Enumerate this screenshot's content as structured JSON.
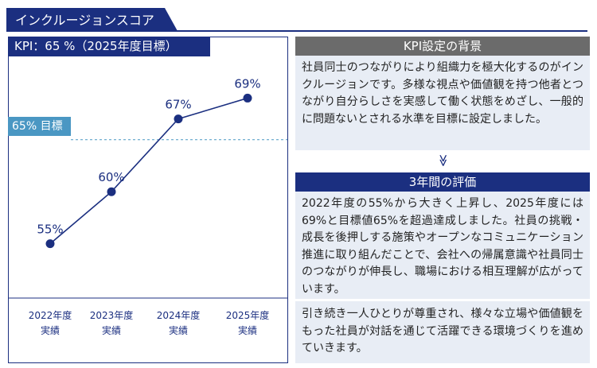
{
  "header": {
    "title": "インクルージョンスコア"
  },
  "kpi_label": "KPI：65 %（2025年度目標）",
  "target_label": "65% 目標",
  "chart_data": {
    "type": "line",
    "categories": [
      "2022年度\n実績",
      "2023年度\n実績",
      "2024年度\n実績",
      "2025年度\n実績"
    ],
    "values": [
      55,
      60,
      67,
      69
    ],
    "value_labels": [
      "55%",
      "60%",
      "67%",
      "69%"
    ],
    "target": 65,
    "ylim": [
      51,
      74
    ],
    "colors": {
      "line": "#1b2f80",
      "target_line": "#4a97c3"
    }
  },
  "background_section": {
    "title": "KPI設定の背景",
    "text": "社員同士のつながりにより組織力を極大化するのがインクルージョンです。多様な視点や価値観を持つ他者とつながり自分らしさを実感して働く状態をめざし、一般的に問題ないとされる水準を目標に設定しました。"
  },
  "chevron": "≫",
  "evaluation_section": {
    "title": "3年間の評価",
    "text1": "2022年度の55%から大きく上昇し、2025年度には69%と目標値65%を超過達成しました。社員の挑戦・成長を後押しする施策やオープンなコミュニケーション推進に取り組んだことで、会社への帰属意識や社員同士のつながりが伸長し、職場における相互理解が広がっています。",
    "text2": "引き続き一人ひとりが尊重され、様々な立場や価値観をもった社員が対話を通じて活躍できる環境づくりを進めていきます。"
  },
  "colors": {
    "navy": "#1b2f80",
    "grey": "#6b6b6b",
    "panel_bg": "#e8edf5",
    "accent": "#4a97c3"
  }
}
